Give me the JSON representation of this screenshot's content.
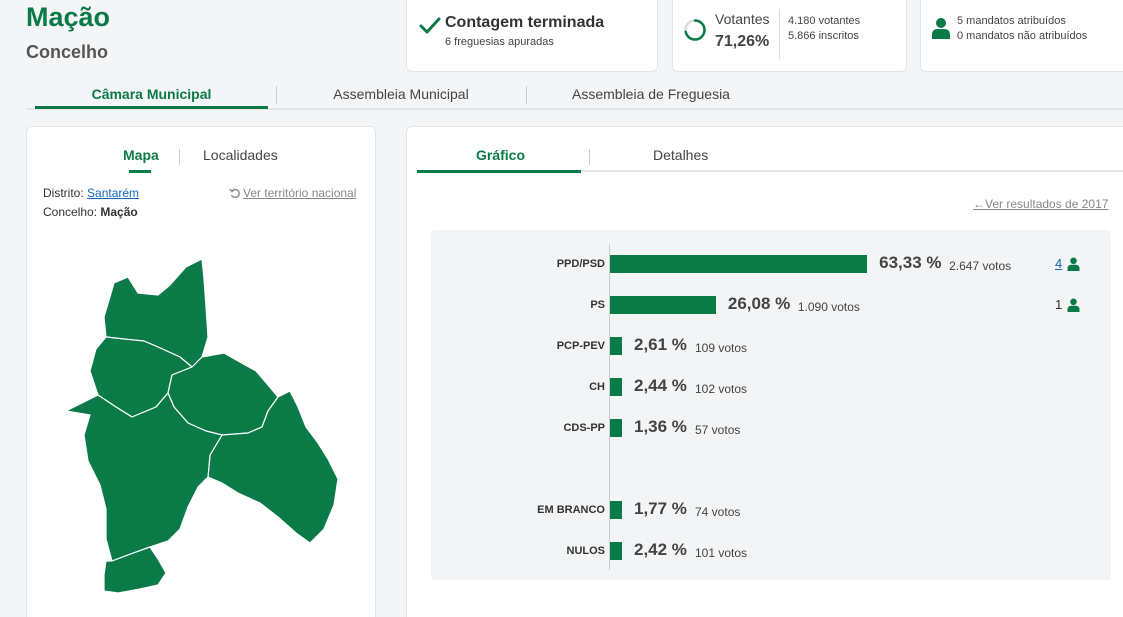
{
  "header": {
    "place_name": "Mação",
    "place_type": "Concelho"
  },
  "status": {
    "title": "Contagem terminada",
    "subtitle": "6 freguesias apuradas",
    "icon": "check-icon"
  },
  "turnout": {
    "label": "Votantes",
    "value": "71,26%",
    "fraction": 0.7126,
    "voters": "4.180 votantes",
    "registered": "5.866 inscritos"
  },
  "seats": {
    "attributed": "5 mandatos atribuídos",
    "not_attributed": "0 mandatos não atribuídos"
  },
  "main_tabs": [
    {
      "label": "Câmara Municipal",
      "active": true
    },
    {
      "label": "Assembleia Municipal",
      "active": false
    },
    {
      "label": "Assembleia de Freguesia",
      "active": false
    }
  ],
  "map_panel": {
    "tabs": [
      {
        "label": "Mapa",
        "active": true
      },
      {
        "label": "Localidades",
        "active": false
      }
    ],
    "district_label": "Distrito:",
    "district_value": "Santarém",
    "county_label": "Concelho:",
    "county_value": "Mação",
    "national_link": "Ver território nacional",
    "fill_color": "#0a7a47"
  },
  "results_panel": {
    "tabs": [
      {
        "label": "Gráfico",
        "active": true
      },
      {
        "label": "Detalhes",
        "active": false
      }
    ],
    "previous_link": "Ver resultados de 2017"
  },
  "chart_data": {
    "type": "bar",
    "orientation": "horizontal",
    "bar_color": "#0a7a47",
    "title": "",
    "xlabel": "",
    "ylabel": "",
    "xlim": [
      0,
      100
    ],
    "grid": false,
    "categories": [
      "PPD/PSD",
      "PS",
      "PCP-PEV",
      "CH",
      "CDS-PP",
      "EM BRANCO",
      "NULOS"
    ],
    "values": [
      63.33,
      26.08,
      2.61,
      2.44,
      1.36,
      1.77,
      2.42
    ],
    "pct_labels": [
      "63,33 %",
      "26,08 %",
      "2,61 %",
      "2,44 %",
      "1,36 %",
      "1,77 %",
      "2,42 %"
    ],
    "vote_labels": [
      "2.647 votos",
      "1.090 votos",
      "109 votos",
      "102 votos",
      "57 votos",
      "74 votos",
      "101 votos"
    ],
    "seats": [
      "4",
      "1",
      "",
      "",
      "",
      "",
      ""
    ]
  }
}
